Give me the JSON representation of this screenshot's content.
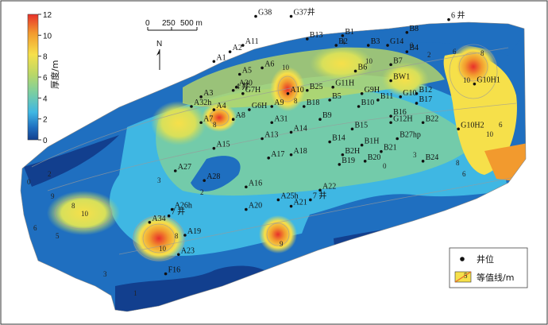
{
  "colorbar": {
    "title": "厚度/m",
    "ticks": [
      "12",
      "10",
      "8",
      "6",
      "4",
      "2",
      "0"
    ],
    "values": [
      12,
      10,
      8,
      6,
      4,
      2,
      0
    ],
    "colors": [
      "#e8302a",
      "#f29a2e",
      "#f6e04a",
      "#b9d767",
      "#7ccfa0",
      "#3fb7e3",
      "#1f6fc0",
      "#123f8e"
    ]
  },
  "scalebar": {
    "labels": [
      "0",
      "250",
      "500 m"
    ]
  },
  "north": {
    "label": "N"
  },
  "legend": {
    "well": "井位",
    "contour": "等值线/m",
    "contour_sample": "5"
  },
  "wells": [
    {
      "id": "G38",
      "x": 40,
      "y": 48
    },
    {
      "id": "G37井",
      "x": 51,
      "y": 48
    },
    {
      "id": "A11",
      "x": 36,
      "y": 39
    },
    {
      "id": "A2",
      "x": 32,
      "y": 37
    },
    {
      "id": "B1",
      "x": 67,
      "y": 42
    },
    {
      "id": "B3",
      "x": 75,
      "y": 39
    },
    {
      "id": "B4",
      "x": 87,
      "y": 37
    },
    {
      "id": "B8",
      "x": 87,
      "y": 43
    },
    {
      "id": "6 井",
      "x": 100,
      "y": 47
    },
    {
      "id": "B13",
      "x": 56,
      "y": 41
    },
    {
      "id": "B7",
      "x": 82,
      "y": 33
    },
    {
      "id": "G14",
      "x": 81,
      "y": 39
    },
    {
      "id": "B2",
      "x": 65,
      "y": 39
    },
    {
      "id": "A6",
      "x": 42,
      "y": 32
    },
    {
      "id": "A5",
      "x": 35,
      "y": 30
    },
    {
      "id": "A1",
      "x": 27,
      "y": 34
    },
    {
      "id": "B6",
      "x": 71,
      "y": 31
    },
    {
      "id": "BW1",
      "x": 82,
      "y": 28
    },
    {
      "id": "B12",
      "x": 90,
      "y": 24
    },
    {
      "id": "G10H1",
      "x": 108,
      "y": 27
    },
    {
      "id": "A30",
      "x": 34,
      "y": 26
    },
    {
      "id": "G7H",
      "x": 36,
      "y": 24
    },
    {
      "id": "B25",
      "x": 56,
      "y": 25
    },
    {
      "id": "B5",
      "x": 63,
      "y": 22
    },
    {
      "id": "G9H",
      "x": 73,
      "y": 24
    },
    {
      "id": "G10",
      "x": 85,
      "y": 23
    },
    {
      "id": "A3",
      "x": 23,
      "y": 23
    },
    {
      "id": "4 井",
      "x": 33,
      "y": 25
    },
    {
      "id": "A10",
      "x": 50,
      "y": 24
    },
    {
      "id": "G11H",
      "x": 64,
      "y": 26
    },
    {
      "id": "B11",
      "x": 78,
      "y": 22
    },
    {
      "id": "B17",
      "x": 90,
      "y": 21
    },
    {
      "id": "A32h",
      "x": 20,
      "y": 20
    },
    {
      "id": "A4",
      "x": 27,
      "y": 19
    },
    {
      "id": "G6H",
      "x": 38,
      "y": 19
    },
    {
      "id": "A9",
      "x": 45,
      "y": 20
    },
    {
      "id": "B18",
      "x": 55,
      "y": 20
    },
    {
      "id": "B10",
      "x": 72,
      "y": 20
    },
    {
      "id": "B16",
      "x": 82,
      "y": 17
    },
    {
      "id": "A8",
      "x": 33,
      "y": 16
    },
    {
      "id": "A31",
      "x": 45,
      "y": 15
    },
    {
      "id": "B9",
      "x": 60,
      "y": 16
    },
    {
      "id": "B22",
      "x": 92,
      "y": 15
    },
    {
      "id": "A7",
      "x": 23,
      "y": 15
    },
    {
      "id": "A14",
      "x": 51,
      "y": 12
    },
    {
      "id": "B15",
      "x": 70,
      "y": 13
    },
    {
      "id": "G12H",
      "x": 82,
      "y": 15
    },
    {
      "id": "B27hp",
      "x": 84,
      "y": 10
    },
    {
      "id": "G10H2",
      "x": 103,
      "y": 13
    },
    {
      "id": "A13",
      "x": 42,
      "y": 10
    },
    {
      "id": "B14",
      "x": 63,
      "y": 9
    },
    {
      "id": "B1H",
      "x": 73,
      "y": 8
    },
    {
      "id": "B2H",
      "x": 67,
      "y": 5
    },
    {
      "id": "B21",
      "x": 79,
      "y": 6
    },
    {
      "id": "B20",
      "x": 74,
      "y": 3
    },
    {
      "id": "B24",
      "x": 92,
      "y": 3
    },
    {
      "id": "A15",
      "x": 27,
      "y": 7
    },
    {
      "id": "A18",
      "x": 51,
      "y": 5
    },
    {
      "id": "A17",
      "x": 44,
      "y": 4
    },
    {
      "id": "B19",
      "x": 66,
      "y": 2
    },
    {
      "id": "A27",
      "x": 15,
      "y": 0
    },
    {
      "id": "A28",
      "x": 24,
      "y": -3
    },
    {
      "id": "A16",
      "x": 37,
      "y": -5
    },
    {
      "id": "A22",
      "x": 60,
      "y": -6
    },
    {
      "id": "A25h",
      "x": 47,
      "y": -9
    },
    {
      "id": "A21",
      "x": 51,
      "y": -11
    },
    {
      "id": "7 井",
      "x": 57,
      "y": -9
    },
    {
      "id": "A26h",
      "x": 14,
      "y": -12
    },
    {
      "id": "A20",
      "x": 37,
      "y": -12
    },
    {
      "id": "7 井",
      "x": 13,
      "y": -14
    },
    {
      "id": "A34",
      "x": 7,
      "y": -16
    },
    {
      "id": "A19",
      "x": 18,
      "y": -20
    },
    {
      "id": "A23",
      "x": 16,
      "y": -26
    },
    {
      "id": "F16",
      "x": 12,
      "y": -32
    }
  ]
}
